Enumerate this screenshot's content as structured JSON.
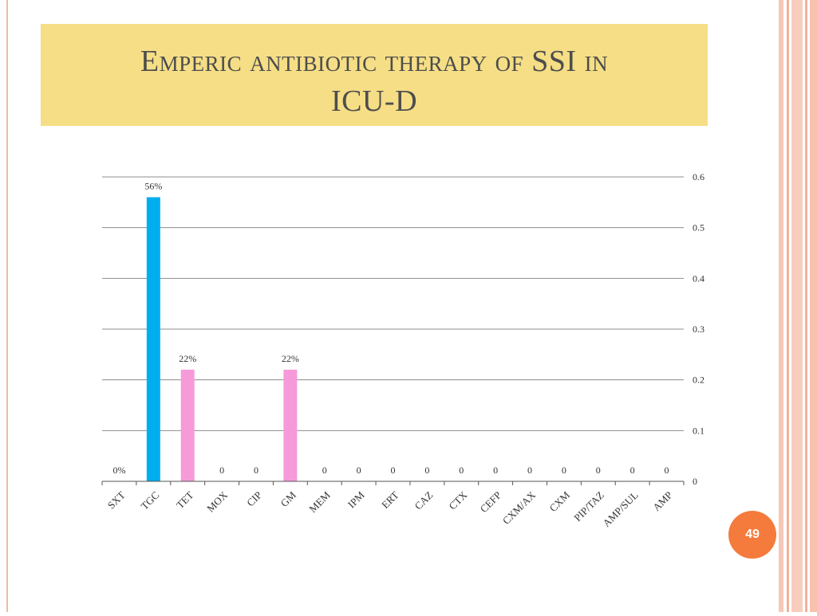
{
  "slide": {
    "title_line1": "Emperic antibiotic therapy of SSI in",
    "title_line2": "ICU-D",
    "page_number": "49"
  },
  "colors": {
    "title_bg": "#f5de85",
    "blue_bar": "#00aeef",
    "pink_bar": "#f69ad9",
    "page_badge": "#f47b3c"
  },
  "chart_data": {
    "type": "bar",
    "title": "",
    "xlabel": "",
    "ylabel": "",
    "ylim": [
      0,
      0.6
    ],
    "yticks": [
      "0",
      "0.1",
      "0.2",
      "0.3",
      "0.4",
      "0.5",
      "0.6"
    ],
    "y_axis_side": "right",
    "grid": true,
    "categories": [
      "SXT",
      "TGC",
      "TET",
      "MOX",
      "CIP",
      "GM",
      "MEM",
      "IPM",
      "ERT",
      "CAZ",
      "CTX",
      "CEFP",
      "CXM/AX",
      "CXM",
      "PIP/TAZ",
      "AMP/SUL",
      "AMP"
    ],
    "values": [
      0,
      0.56,
      0.22,
      0,
      0,
      0.22,
      0,
      0,
      0,
      0,
      0,
      0,
      0,
      0,
      0,
      0,
      0
    ],
    "data_labels": [
      "0%",
      "56%",
      "22%",
      "0",
      "0",
      "22%",
      "0",
      "0",
      "0",
      "0",
      "0",
      "0",
      "0",
      "0",
      "0",
      "0",
      "0"
    ],
    "bar_colors": [
      "#00aeef",
      "#00aeef",
      "#f69ad9",
      "#f69ad9",
      "#f69ad9",
      "#f69ad9",
      "#f69ad9",
      "#f69ad9",
      "#f69ad9",
      "#f69ad9",
      "#f69ad9",
      "#f69ad9",
      "#f69ad9",
      "#f69ad9",
      "#f69ad9",
      "#f69ad9",
      "#f69ad9"
    ]
  }
}
